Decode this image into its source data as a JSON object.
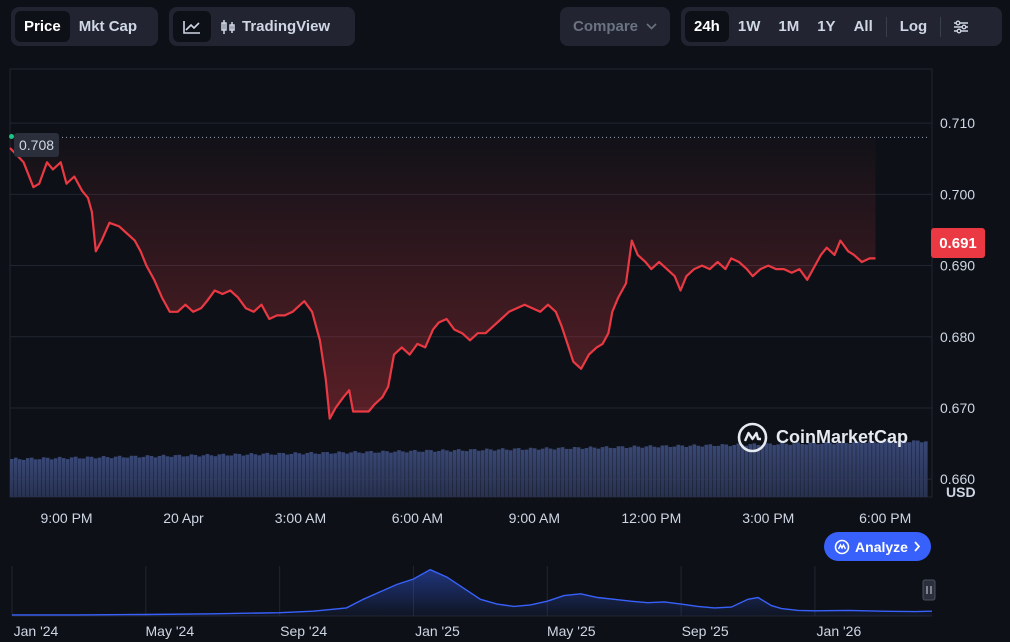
{
  "toolbar": {
    "view_tabs": [
      "Price",
      "Mkt Cap"
    ],
    "active_view": "Price",
    "tradingview_label": "TradingView",
    "compare_label": "Compare",
    "ranges": [
      "24h",
      "1W",
      "1M",
      "1Y",
      "All"
    ],
    "active_range": "24h",
    "log_label": "Log"
  },
  "colors": {
    "line": "#ea3943",
    "accent": "#3861fb",
    "background": "#0d1117",
    "start_marker": "#16c784"
  },
  "watermark": "CoinMarketCap",
  "analyze_label": "Analyze",
  "current_price_label": "0.691",
  "start_price_label": "0.708",
  "chart_data": {
    "type": "line",
    "ylim": [
      0.6575,
      0.7176
    ],
    "y_ticks": [
      "0.710",
      "0.700",
      "0.690",
      "0.680",
      "0.670",
      "0.660"
    ],
    "y_tick_values": [
      0.71,
      0.7,
      0.69,
      0.68,
      0.67,
      0.66
    ],
    "y_unit": "USD",
    "x_ticks": [
      "9:00 PM",
      "20 Apr",
      "3:00 AM",
      "6:00 AM",
      "9:00 AM",
      "12:00 PM",
      "3:00 PM",
      "6:00 PM"
    ],
    "x_tick_hours": [
      2,
      5,
      8,
      11,
      14,
      17,
      20,
      23
    ],
    "hours_span": [
      0.55,
      24.2
    ],
    "reference_line": 0.708,
    "series": [
      {
        "values": [
          [
            0.55,
            0.7065
          ],
          [
            0.9,
            0.7045
          ],
          [
            1.15,
            0.701
          ],
          [
            1.3,
            0.7015
          ],
          [
            1.5,
            0.7045
          ],
          [
            1.65,
            0.7035
          ],
          [
            1.85,
            0.7045
          ],
          [
            2.0,
            0.7015
          ],
          [
            2.2,
            0.7025
          ],
          [
            2.4,
            0.7005
          ],
          [
            2.55,
            0.6995
          ],
          [
            2.65,
            0.6975
          ],
          [
            2.75,
            0.692
          ],
          [
            2.9,
            0.6935
          ],
          [
            3.1,
            0.696
          ],
          [
            3.35,
            0.6955
          ],
          [
            3.55,
            0.6945
          ],
          [
            3.75,
            0.6935
          ],
          [
            3.9,
            0.692
          ],
          [
            4.05,
            0.69
          ],
          [
            4.25,
            0.688
          ],
          [
            4.45,
            0.6855
          ],
          [
            4.65,
            0.6835
          ],
          [
            4.85,
            0.6835
          ],
          [
            5.05,
            0.6845
          ],
          [
            5.25,
            0.6835
          ],
          [
            5.45,
            0.684
          ],
          [
            5.6,
            0.685
          ],
          [
            5.8,
            0.6865
          ],
          [
            6.0,
            0.686
          ],
          [
            6.2,
            0.6865
          ],
          [
            6.4,
            0.6855
          ],
          [
            6.6,
            0.684
          ],
          [
            6.8,
            0.6835
          ],
          [
            7.0,
            0.6845
          ],
          [
            7.2,
            0.6825
          ],
          [
            7.4,
            0.683
          ],
          [
            7.6,
            0.683
          ],
          [
            7.8,
            0.6835
          ],
          [
            8.0,
            0.6845
          ],
          [
            8.1,
            0.685
          ],
          [
            8.3,
            0.6835
          ],
          [
            8.5,
            0.6795
          ],
          [
            8.65,
            0.674
          ],
          [
            8.75,
            0.6685
          ],
          [
            8.9,
            0.67
          ],
          [
            9.1,
            0.6715
          ],
          [
            9.25,
            0.6725
          ],
          [
            9.35,
            0.6695
          ],
          [
            9.55,
            0.6695
          ],
          [
            9.75,
            0.6695
          ],
          [
            9.9,
            0.6705
          ],
          [
            10.1,
            0.6715
          ],
          [
            10.25,
            0.673
          ],
          [
            10.4,
            0.6775
          ],
          [
            10.6,
            0.6785
          ],
          [
            10.8,
            0.6775
          ],
          [
            11.0,
            0.679
          ],
          [
            11.2,
            0.6785
          ],
          [
            11.4,
            0.681
          ],
          [
            11.55,
            0.682
          ],
          [
            11.75,
            0.6825
          ],
          [
            11.95,
            0.681
          ],
          [
            12.15,
            0.6805
          ],
          [
            12.35,
            0.6795
          ],
          [
            12.55,
            0.6805
          ],
          [
            12.75,
            0.6805
          ],
          [
            12.95,
            0.6815
          ],
          [
            13.15,
            0.6825
          ],
          [
            13.35,
            0.6835
          ],
          [
            13.55,
            0.684
          ],
          [
            13.75,
            0.6845
          ],
          [
            13.95,
            0.684
          ],
          [
            14.15,
            0.6835
          ],
          [
            14.35,
            0.6845
          ],
          [
            14.55,
            0.6835
          ],
          [
            14.7,
            0.6815
          ],
          [
            14.85,
            0.679
          ],
          [
            15.0,
            0.6765
          ],
          [
            15.2,
            0.6755
          ],
          [
            15.4,
            0.6775
          ],
          [
            15.6,
            0.6785
          ],
          [
            15.75,
            0.679
          ],
          [
            15.9,
            0.6805
          ],
          [
            16.0,
            0.6835
          ],
          [
            16.15,
            0.6855
          ],
          [
            16.35,
            0.6875
          ],
          [
            16.5,
            0.6935
          ],
          [
            16.65,
            0.6915
          ],
          [
            16.85,
            0.6905
          ],
          [
            17.0,
            0.6895
          ],
          [
            17.2,
            0.6905
          ],
          [
            17.4,
            0.6895
          ],
          [
            17.6,
            0.6885
          ],
          [
            17.75,
            0.6865
          ],
          [
            17.9,
            0.6885
          ],
          [
            18.1,
            0.6895
          ],
          [
            18.3,
            0.69
          ],
          [
            18.5,
            0.6895
          ],
          [
            18.7,
            0.6905
          ],
          [
            18.9,
            0.6895
          ],
          [
            19.05,
            0.691
          ],
          [
            19.25,
            0.6905
          ],
          [
            19.45,
            0.6895
          ],
          [
            19.6,
            0.6885
          ],
          [
            19.8,
            0.6895
          ],
          [
            20.0,
            0.69
          ],
          [
            20.2,
            0.6895
          ],
          [
            20.4,
            0.6895
          ],
          [
            20.6,
            0.689
          ],
          [
            20.8,
            0.6895
          ],
          [
            21.0,
            0.688
          ],
          [
            21.15,
            0.6895
          ],
          [
            21.35,
            0.6915
          ],
          [
            21.5,
            0.6925
          ],
          [
            21.7,
            0.6915
          ],
          [
            21.85,
            0.6935
          ],
          [
            22.05,
            0.692
          ],
          [
            22.2,
            0.6915
          ],
          [
            22.4,
            0.6905
          ],
          [
            22.6,
            0.691
          ],
          [
            22.75,
            0.691
          ]
        ]
      }
    ],
    "volume_label_none": "",
    "navigator": {
      "x_ticks": [
        "Jan '24",
        "May '24",
        "Sep '24",
        "Jan '25",
        "May '25",
        "Sep '25",
        "Jan '26"
      ],
      "x_tick_index": [
        0,
        4,
        8,
        12,
        16,
        20,
        24
      ],
      "months_span": [
        0,
        27.5
      ],
      "values": [
        [
          0,
          0.3
        ],
        [
          2,
          0.3
        ],
        [
          4,
          0.4
        ],
        [
          6,
          0.6
        ],
        [
          8,
          0.9
        ],
        [
          9,
          1.3
        ],
        [
          10,
          2.2
        ],
        [
          10.5,
          4.5
        ],
        [
          11,
          6.5
        ],
        [
          11.5,
          8.5
        ],
        [
          12,
          10
        ],
        [
          12.5,
          12.5
        ],
        [
          13,
          10.5
        ],
        [
          13.5,
          7.5
        ],
        [
          14,
          4.5
        ],
        [
          14.5,
          3.2
        ],
        [
          15,
          2.6
        ],
        [
          15.5,
          3.0
        ],
        [
          16,
          4.0
        ],
        [
          16.5,
          5.5
        ],
        [
          17,
          6.0
        ],
        [
          17.5,
          5.0
        ],
        [
          18,
          4.5
        ],
        [
          18.5,
          4.0
        ],
        [
          19,
          3.6
        ],
        [
          19.5,
          3.8
        ],
        [
          20,
          3.2
        ],
        [
          20.5,
          2.6
        ],
        [
          21,
          2.2
        ],
        [
          21.5,
          2.4
        ],
        [
          22,
          4.5
        ],
        [
          22.3,
          5.0
        ],
        [
          22.7,
          2.8
        ],
        [
          23,
          2.0
        ],
        [
          23.5,
          1.5
        ],
        [
          24,
          1.4
        ],
        [
          25,
          1.5
        ],
        [
          26,
          1.3
        ],
        [
          27,
          1.2
        ],
        [
          27.5,
          1.3
        ]
      ]
    }
  }
}
